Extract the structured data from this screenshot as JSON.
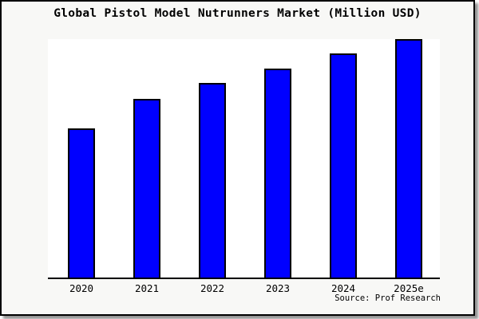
{
  "title": "Global Pistol Model Nutrunners Market (Million USD)",
  "source_note": "Source: Prof Research",
  "colors": {
    "bar_fill": "#0000ff",
    "bar_border": "#000000",
    "frame_background": "#f8f8f6",
    "plot_background": "#ffffff",
    "axis_line": "#000000",
    "text": "#000000"
  },
  "chart_data": {
    "type": "bar",
    "title": "Global Pistol Model Nutrunners Market (Million USD)",
    "categories": [
      "2020",
      "2021",
      "2022",
      "2023",
      "2024",
      "2025e"
    ],
    "values": [
      62.5,
      75,
      81.5,
      87.5,
      94,
      100
    ],
    "value_note": "no y-axis ticks or data labels shown; values are relative bar heights with 2025e = 100",
    "xlabel": "",
    "ylabel": "",
    "ylim": [
      0,
      100
    ],
    "grid": false,
    "legend": null,
    "y_axis_visible": false,
    "annotations": [
      "Source: Prof Research"
    ]
  }
}
